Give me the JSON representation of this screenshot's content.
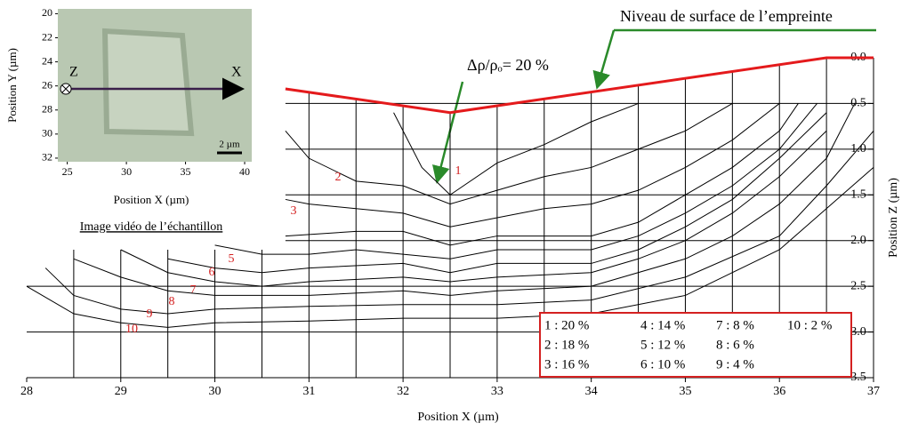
{
  "chart_data": [
    {
      "type": "contour",
      "xlabel": "Position X (µm)",
      "ylabel": "Position Z (µm)",
      "xlim": [
        28,
        37
      ],
      "xticks": [
        28,
        29,
        30,
        31,
        32,
        33,
        34,
        35,
        36,
        37
      ],
      "ylim": [
        0,
        3.5
      ],
      "y_inverted": true,
      "yticks": [
        {
          "value": 0,
          "label": "0.0"
        },
        0.5,
        {
          "value": 1,
          "label": "1.0"
        },
        1.5,
        {
          "value": 2,
          "label": "2.0"
        },
        2.5,
        {
          "value": 3,
          "label": "3.0"
        },
        3.5
      ],
      "label_color": "#d42020",
      "legend_position": "lower right",
      "surface": {
        "color": "#e41a1c",
        "x": [
          30.75,
          32.5,
          36.5,
          37
        ],
        "values": [
          0.34,
          0.6,
          0,
          0
        ]
      },
      "mesh": {
        "x": [
          28.5,
          29,
          29.5,
          30,
          30.5,
          31,
          31.5,
          32,
          32.5,
          33,
          33.5,
          34,
          34.5,
          35,
          35.5,
          36,
          36.5
        ],
        "left_top": 2.1
      },
      "series": [
        {
          "name": "1",
          "level": 20,
          "level_label": "1 : 20 %",
          "x": [
            31.9,
            32.2,
            32.5,
            33,
            33.5,
            34,
            34.5
          ],
          "values": [
            0.6,
            1.2,
            1.5,
            1.15,
            0.95,
            0.7,
            0.5
          ]
        },
        {
          "name": "2",
          "level": 18,
          "level_label": "2 : 18 %",
          "x": [
            30.75,
            31,
            31.5,
            32,
            32.5,
            33,
            33.5,
            34,
            34.5,
            35,
            35.5
          ],
          "values": [
            0.8,
            1.1,
            1.35,
            1.4,
            1.6,
            1.45,
            1.3,
            1.2,
            1.0,
            0.8,
            0.5
          ]
        },
        {
          "name": "3",
          "level": 16,
          "level_label": "3 : 16 %",
          "x": [
            30.75,
            31,
            31.5,
            32,
            32.5,
            33,
            33.5,
            34,
            34.5,
            35,
            35.5,
            36
          ],
          "values": [
            1.55,
            1.6,
            1.65,
            1.7,
            1.85,
            1.75,
            1.65,
            1.6,
            1.45,
            1.2,
            0.9,
            0.5
          ]
        },
        {
          "name": "4",
          "level": 14,
          "level_label": "4 : 14 %",
          "x": [
            30.75,
            31.5,
            32,
            32.5,
            33,
            34,
            34.5,
            35,
            35.5,
            36,
            36.2
          ],
          "values": [
            1.95,
            1.9,
            1.9,
            2.05,
            1.95,
            1.95,
            1.8,
            1.5,
            1.2,
            0.8,
            0.5
          ]
        },
        {
          "name": "5",
          "level": 12,
          "level_label": "5 : 12 %",
          "x": [
            30,
            30.5,
            31,
            31.5,
            32,
            32.5,
            33,
            34,
            34.5,
            35,
            35.5,
            36,
            36.4
          ],
          "values": [
            2.05,
            2.15,
            2.15,
            2.1,
            2.15,
            2.2,
            2.1,
            2.1,
            1.95,
            1.7,
            1.4,
            1.0,
            0.5
          ]
        },
        {
          "name": "6",
          "level": 10,
          "level_label": "6 : 10 %",
          "x": [
            29.5,
            30,
            30.5,
            31,
            32,
            32.5,
            33,
            34,
            34.5,
            35,
            35.5,
            36,
            36.5
          ],
          "values": [
            2.2,
            2.3,
            2.35,
            2.3,
            2.25,
            2.35,
            2.25,
            2.25,
            2.1,
            1.85,
            1.55,
            1.1,
            0.6
          ]
        },
        {
          "name": "7",
          "level": 8,
          "level_label": "7 : 8 %",
          "x": [
            29,
            29.5,
            30,
            30.5,
            31,
            32,
            32.5,
            33,
            34,
            34.5,
            35,
            35.5,
            36,
            36.5
          ],
          "values": [
            2.1,
            2.35,
            2.45,
            2.5,
            2.45,
            2.4,
            2.45,
            2.4,
            2.35,
            2.2,
            2.0,
            1.7,
            1.3,
            0.8
          ]
        },
        {
          "name": "8",
          "level": 6,
          "level_label": "8 : 6 %",
          "x": [
            28.5,
            29,
            29.5,
            30,
            31,
            32,
            32.5,
            33,
            34,
            35,
            35.5,
            36,
            36.5,
            36.8
          ],
          "values": [
            2.2,
            2.4,
            2.55,
            2.6,
            2.6,
            2.55,
            2.6,
            2.55,
            2.5,
            2.2,
            1.95,
            1.6,
            1.1,
            0.5
          ]
        },
        {
          "name": "9",
          "level": 4,
          "level_label": "9 : 4 %",
          "x": [
            28.2,
            28.5,
            29,
            29.5,
            30,
            31,
            32,
            33,
            34,
            35,
            36,
            36.5,
            37
          ],
          "values": [
            2.3,
            2.6,
            2.75,
            2.8,
            2.75,
            2.72,
            2.7,
            2.7,
            2.65,
            2.4,
            1.95,
            1.4,
            0.8
          ]
        },
        {
          "name": "10",
          "level": 2,
          "level_label": "10 : 2 %",
          "x": [
            28,
            28.5,
            29,
            29.5,
            30,
            31,
            32,
            33,
            34,
            35,
            36,
            37
          ],
          "values": [
            2.5,
            2.8,
            2.9,
            2.95,
            2.9,
            2.88,
            2.85,
            2.85,
            2.8,
            2.6,
            2.1,
            1.2
          ]
        }
      ],
      "annotations": [
        "Niveau de surface de l’empreinte",
        "Δρ/ρₒ= 20 %"
      ]
    },
    {
      "type": "image",
      "xlabel": "Position X (µm)",
      "ylabel": "Position Y (µm)",
      "xlim": [
        24.2,
        40.6
      ],
      "xticks": [
        25,
        30,
        35,
        40
      ],
      "ylim": [
        19.6,
        32.3
      ],
      "yticks": [
        20,
        22,
        24,
        26,
        28,
        30,
        32
      ],
      "axis_labels": [
        "Z",
        "X"
      ],
      "scale_bar": "2 µm",
      "caption": "Image vidéo de l’échantillon"
    }
  ]
}
